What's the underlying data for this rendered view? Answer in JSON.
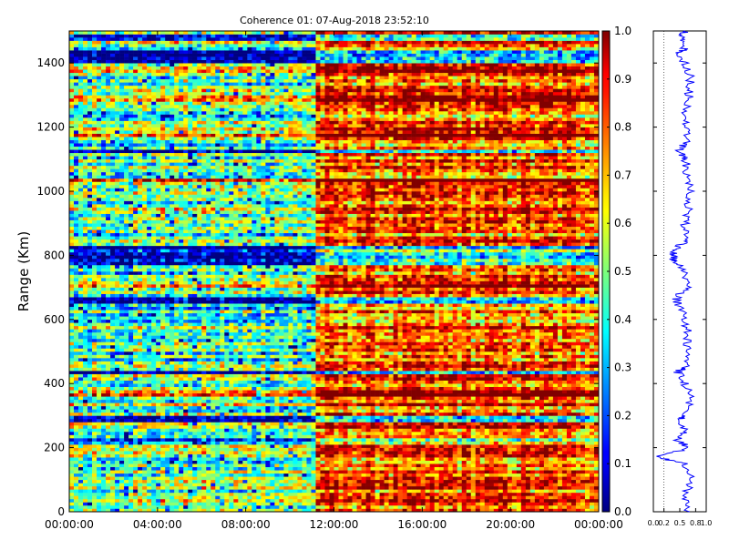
{
  "chart_data": [
    {
      "type": "heatmap",
      "title": "Coherence 01: 07-Aug-2018 23:52:10",
      "xlabel": "",
      "ylabel": "Range (Km)",
      "x_ticks": [
        "00:00:00",
        "04:00:00",
        "08:00:00",
        "12:00:00",
        "16:00:00",
        "20:00:00",
        "00:00:00"
      ],
      "y_ticks": [
        "0",
        "200",
        "400",
        "600",
        "800",
        "1000",
        "1200",
        "1400"
      ],
      "xlim_hours": [
        0,
        24
      ],
      "ylim": [
        0,
        1500
      ],
      "colorbar": {
        "colormap": "jet",
        "range": [
          0.0,
          1.0
        ],
        "tick_labels": [
          "0.0",
          "0.1",
          "0.2",
          "0.3",
          "0.4",
          "0.5",
          "0.6",
          "0.7",
          "0.8",
          "0.9",
          "1.0"
        ]
      },
      "regime_change_hour": 11.2,
      "mean_before_change": 0.48,
      "mean_after_change": 0.78,
      "low_coherence_ranges_km": [
        220,
        290,
        435,
        655,
        665,
        780,
        800,
        820,
        1125,
        1410,
        1430,
        1480
      ],
      "high_coherence_ranges_km": [
        210,
        335,
        370,
        705,
        1030,
        1175,
        1290,
        1380
      ]
    },
    {
      "type": "line",
      "title": "",
      "xlabel": "",
      "ylabel": "",
      "x_ticks": [
        "0.0",
        "0.2",
        "0.5",
        "0.8",
        "1.0"
      ],
      "xlim": [
        0,
        1
      ],
      "ylim": [
        0,
        1500
      ],
      "series_color": "#0000ff",
      "range_km": [
        0,
        50,
        100,
        150,
        170,
        200,
        220,
        250,
        290,
        300,
        350,
        400,
        435,
        450,
        500,
        550,
        600,
        650,
        665,
        700,
        750,
        780,
        800,
        820,
        850,
        900,
        950,
        1000,
        1050,
        1100,
        1125,
        1150,
        1200,
        1250,
        1300,
        1350,
        1400,
        1430,
        1450,
        1480,
        1500
      ],
      "coherence": [
        0.65,
        0.6,
        0.7,
        0.62,
        0.05,
        0.7,
        0.45,
        0.62,
        0.5,
        0.63,
        0.7,
        0.6,
        0.45,
        0.6,
        0.62,
        0.66,
        0.6,
        0.45,
        0.42,
        0.66,
        0.58,
        0.4,
        0.38,
        0.45,
        0.62,
        0.6,
        0.66,
        0.7,
        0.6,
        0.62,
        0.45,
        0.6,
        0.62,
        0.6,
        0.68,
        0.7,
        0.6,
        0.5,
        0.62,
        0.5,
        0.6
      ]
    }
  ]
}
